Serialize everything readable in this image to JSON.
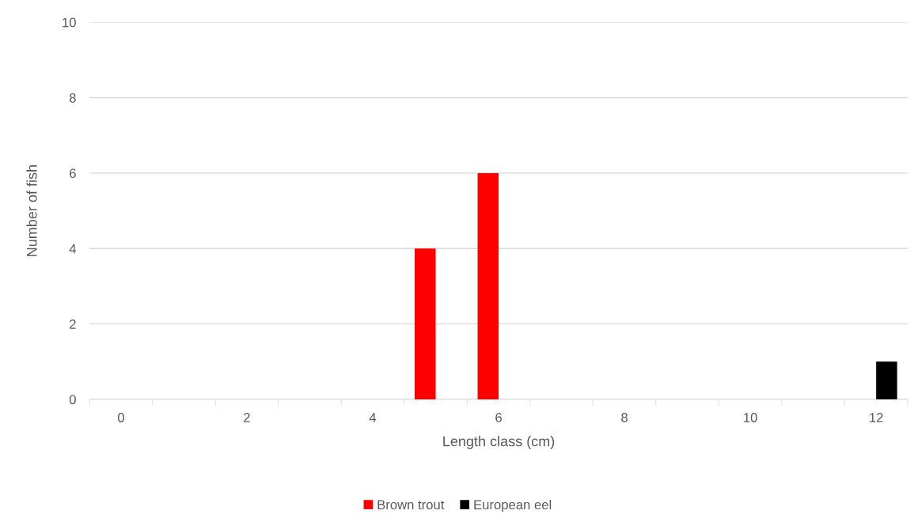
{
  "chart_data": {
    "type": "bar",
    "xlabel": "Length class (cm)",
    "ylabel": "Number of fish",
    "categories": [
      "0",
      null,
      "2",
      null,
      "4",
      null,
      "6",
      null,
      "8",
      null,
      "10",
      null,
      "12"
    ],
    "series": [
      {
        "name": "Brown trout",
        "color": "#ff0000",
        "values": [
          0,
          0,
          0,
          0,
          0,
          4,
          6,
          0,
          0,
          0,
          0,
          0,
          0
        ]
      },
      {
        "name": "European eel",
        "color": "#000000",
        "values": [
          0,
          0,
          0,
          0,
          0,
          0,
          0,
          0,
          0,
          0,
          0,
          0,
          1
        ]
      }
    ],
    "ylim": [
      0,
      10
    ],
    "yticks": [
      0,
      2,
      4,
      6,
      8,
      10
    ],
    "grid": "y",
    "legend": "bottom"
  }
}
